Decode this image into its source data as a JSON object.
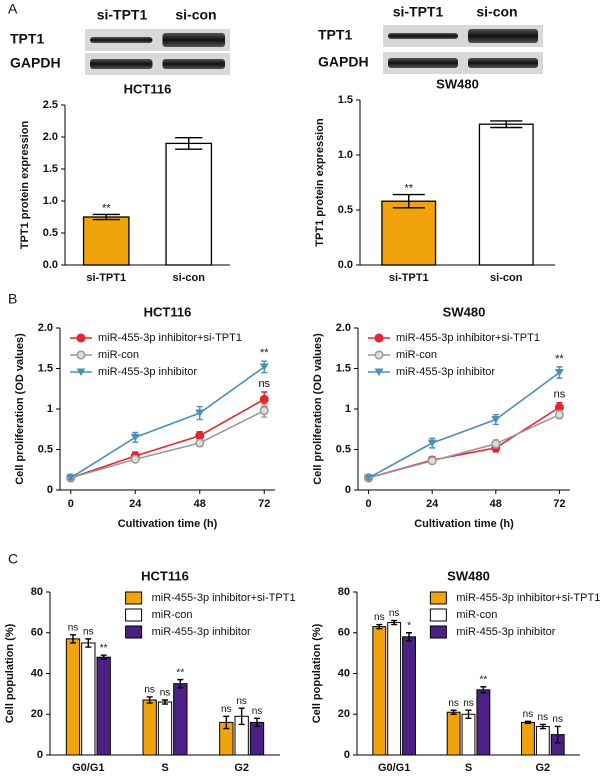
{
  "panels": [
    "A",
    "B",
    "C"
  ],
  "blots": [
    {
      "lanes": [
        "si-TPT1",
        "si-con"
      ],
      "rows": [
        "TPT1",
        "GAPDH"
      ]
    },
    {
      "lanes": [
        "si-TPT1",
        "si-con"
      ],
      "rows": [
        "TPT1",
        "GAPDH"
      ]
    }
  ],
  "chart_data": [
    {
      "type": "bar",
      "title": "HCT116",
      "ylabel": "TPT1 protein expression",
      "categories": [
        "si-TPT1",
        "si-con"
      ],
      "values": [
        0.75,
        1.9
      ],
      "errors": [
        0.04,
        0.09
      ],
      "colors": [
        "#f0a30a",
        "#ffffff"
      ],
      "significance": [
        "**",
        null
      ],
      "ylim": [
        0,
        2.5
      ],
      "yticks": [
        {
          "value": 0,
          "label": "0.0"
        },
        0.5,
        {
          "value": 1,
          "label": "1.0"
        },
        1.5,
        {
          "value": 2,
          "label": "2.0"
        },
        2.5
      ]
    },
    {
      "type": "bar",
      "title": "SW480",
      "ylabel": "TPT1 protein expression",
      "categories": [
        "si-TPT1",
        "si-con"
      ],
      "values": [
        0.58,
        1.28
      ],
      "errors": [
        0.06,
        0.03
      ],
      "colors": [
        "#f0a30a",
        "#ffffff"
      ],
      "significance": [
        "**",
        null
      ],
      "ylim": [
        0,
        1.5
      ],
      "yticks": [
        {
          "value": 0,
          "label": "0.0"
        },
        0.5,
        {
          "value": 1,
          "label": "1.0"
        },
        1.5
      ]
    },
    {
      "type": "line",
      "title": "HCT116",
      "ylabel": "Cell proliferation (OD values)",
      "xlabel": "Cultivation time (h)",
      "x": [
        0,
        24,
        48,
        72
      ],
      "xlim": [
        -4,
        76
      ],
      "xticks": [
        0,
        24,
        48,
        72
      ],
      "ylim": [
        0,
        2
      ],
      "yticks": [
        0,
        0.5,
        1,
        1.5,
        {
          "value": 2,
          "label": "2.0"
        }
      ],
      "legend": "upper left",
      "series": [
        {
          "name": "miR-455-3p inhibitor+si-TPT1",
          "color": "#e3262f",
          "marker": "circle",
          "values": [
            0.15,
            0.42,
            0.67,
            1.12
          ],
          "errors": [
            0.02,
            0.05,
            0.05,
            0.09
          ],
          "significance": "ns"
        },
        {
          "name": "miR-con",
          "color": "#9a9a9a",
          "marker": "circle",
          "values": [
            0.15,
            0.38,
            0.58,
            0.98
          ],
          "errors": [
            0.02,
            0.03,
            0.04,
            0.08
          ],
          "significance": null
        },
        {
          "name": "miR-455-3p inhibitor",
          "color": "#4a90b8",
          "marker": "triangle",
          "values": [
            0.15,
            0.65,
            0.95,
            1.52
          ],
          "errors": [
            0.02,
            0.06,
            0.08,
            0.07
          ],
          "significance": "**"
        }
      ]
    },
    {
      "type": "line",
      "title": "SW480",
      "ylabel": "Cell proliferation (OD values)",
      "xlabel": "Cultivation time (h)",
      "x": [
        0,
        24,
        48,
        72
      ],
      "xlim": [
        -4,
        76
      ],
      "xticks": [
        0,
        24,
        48,
        72
      ],
      "ylim": [
        0,
        2
      ],
      "yticks": [
        0,
        0.5,
        1,
        1.5,
        {
          "value": 2,
          "label": "2.0"
        }
      ],
      "legend": "upper left",
      "series": [
        {
          "name": "miR-455-3p inhibitor+si-TPT1",
          "color": "#e3262f",
          "marker": "circle",
          "values": [
            0.15,
            0.37,
            0.52,
            1.02
          ],
          "errors": [
            0.02,
            0.04,
            0.05,
            0.06
          ],
          "significance": "ns"
        },
        {
          "name": "miR-con",
          "color": "#9a9a9a",
          "marker": "circle",
          "values": [
            0.15,
            0.36,
            0.57,
            0.93
          ],
          "errors": [
            0.02,
            0.03,
            0.05,
            0.05
          ],
          "significance": null
        },
        {
          "name": "miR-455-3p inhibitor",
          "color": "#4a90b8",
          "marker": "triangle",
          "values": [
            0.15,
            0.58,
            0.87,
            1.45
          ],
          "errors": [
            0.02,
            0.06,
            0.06,
            0.07
          ],
          "significance": "**"
        }
      ]
    },
    {
      "type": "bar",
      "title": "HCT116",
      "ylabel": "Cell population (%)",
      "categories": [
        "G0/G1",
        "S",
        "G2"
      ],
      "ylim": [
        0,
        80
      ],
      "yticks": [
        0,
        20,
        40,
        60,
        80
      ],
      "legend": "upper right",
      "series": [
        {
          "name": "miR-455-3p inhibitor+si-TPT1",
          "color": "#f0a30a",
          "values": [
            57,
            27,
            16
          ],
          "errors": [
            2,
            1.5,
            3
          ],
          "significance": [
            "ns",
            "ns",
            "ns"
          ]
        },
        {
          "name": "miR-con",
          "color": "#ffffff",
          "values": [
            55,
            26,
            19
          ],
          "errors": [
            2,
            1,
            4
          ],
          "significance": [
            "ns",
            "ns",
            "ns"
          ]
        },
        {
          "name": "miR-455-3p inhibitor",
          "color": "#4b2186",
          "values": [
            48,
            35,
            16
          ],
          "errors": [
            1,
            2,
            2
          ],
          "significance": [
            "**",
            "**",
            "ns"
          ]
        }
      ]
    },
    {
      "type": "bar",
      "title": "SW480",
      "ylabel": "Cell population (%)",
      "categories": [
        "G0/G1",
        "S",
        "G2"
      ],
      "ylim": [
        0,
        80
      ],
      "yticks": [
        0,
        20,
        40,
        60,
        80
      ],
      "legend": "upper right",
      "series": [
        {
          "name": "miR-455-3p inhibitor+si-TPT1",
          "color": "#f0a30a",
          "values": [
            63,
            21,
            16
          ],
          "errors": [
            1,
            1,
            0.5
          ],
          "significance": [
            "ns",
            "ns",
            "ns"
          ]
        },
        {
          "name": "miR-con",
          "color": "#ffffff",
          "values": [
            65,
            20,
            14
          ],
          "errors": [
            1,
            2,
            1
          ],
          "significance": [
            "ns",
            "ns",
            "ns"
          ]
        },
        {
          "name": "miR-455-3p inhibitor",
          "color": "#4b2186",
          "values": [
            58,
            32,
            10
          ],
          "errors": [
            2,
            1.5,
            4
          ],
          "significance": [
            "*",
            "**",
            "ns"
          ]
        }
      ]
    }
  ]
}
